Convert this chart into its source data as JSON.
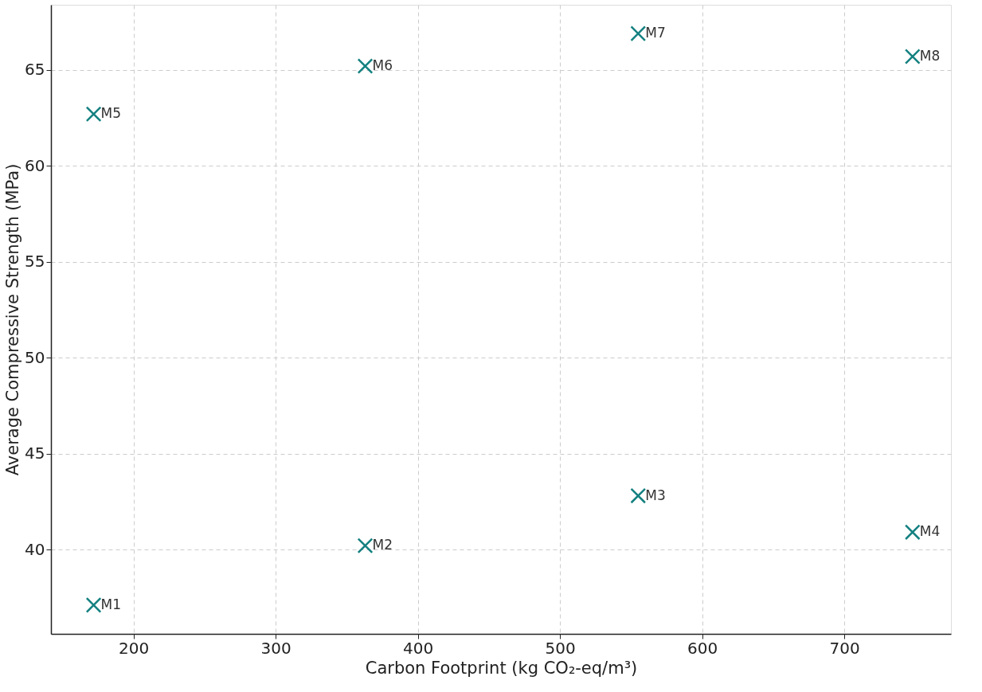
{
  "chart_data": {
    "type": "scatter",
    "xlabel": "Carbon Footprint (kg CO₂-eq/m³)",
    "ylabel": "Average Compressive Strength (MPa)",
    "x": [
      172,
      363,
      555,
      748,
      172,
      363,
      555,
      748
    ],
    "series": [
      {
        "color": "#148080",
        "values": [
          37.1,
          40.2,
          42.8,
          40.9,
          62.7,
          65.2,
          66.9,
          65.7
        ]
      }
    ],
    "annotations": [
      {
        "text": "M1",
        "x": 172,
        "y": 37.1
      },
      {
        "text": "M2",
        "x": 363,
        "y": 40.2
      },
      {
        "text": "M3",
        "x": 555,
        "y": 42.8
      },
      {
        "text": "M4",
        "x": 748,
        "y": 40.9
      },
      {
        "text": "M5",
        "x": 172,
        "y": 62.7
      },
      {
        "text": "M6",
        "x": 363,
        "y": 65.2
      },
      {
        "text": "M7",
        "x": 555,
        "y": 66.9
      },
      {
        "text": "M8",
        "x": 748,
        "y": 65.7
      }
    ],
    "xlim": [
      142,
      775
    ],
    "ylim": [
      35.6,
      68.4
    ],
    "xticks": [
      200,
      300,
      400,
      500,
      600,
      700
    ],
    "yticks": [
      40,
      45,
      50,
      55,
      60,
      65
    ],
    "grid": true,
    "marker": "cross"
  }
}
